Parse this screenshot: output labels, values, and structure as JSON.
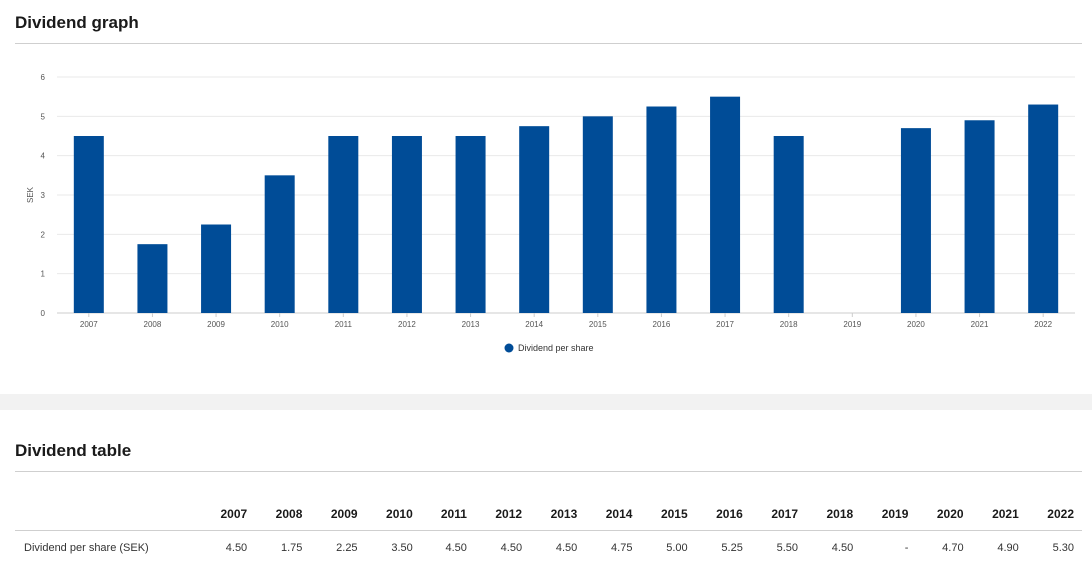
{
  "graph": {
    "title": "Dividend graph"
  },
  "table": {
    "title": "Dividend table",
    "row_label": "Dividend per share (SEK)",
    "years": [
      "2007",
      "2008",
      "2009",
      "2010",
      "2011",
      "2012",
      "2013",
      "2014",
      "2015",
      "2016",
      "2017",
      "2018",
      "2019",
      "2020",
      "2021",
      "2022"
    ],
    "values": [
      "4.50",
      "1.75",
      "2.25",
      "3.50",
      "4.50",
      "4.50",
      "4.50",
      "4.75",
      "5.00",
      "5.25",
      "5.50",
      "4.50",
      "-",
      "4.70",
      "4.90",
      "5.30"
    ]
  },
  "chart_data": {
    "type": "bar",
    "categories": [
      "2007",
      "2008",
      "2009",
      "2010",
      "2011",
      "2012",
      "2013",
      "2014",
      "2015",
      "2016",
      "2017",
      "2018",
      "2019",
      "2020",
      "2021",
      "2022"
    ],
    "series": [
      {
        "name": "Dividend per share",
        "values": [
          4.5,
          1.75,
          2.25,
          3.5,
          4.5,
          4.5,
          4.5,
          4.75,
          5.0,
          5.25,
          5.5,
          4.5,
          null,
          4.7,
          4.9,
          5.3
        ],
        "color": "#004c97"
      }
    ],
    "ylabel": "SEK",
    "ylim": [
      0,
      6
    ],
    "yticks": [
      0,
      1,
      2,
      3,
      4,
      5,
      6
    ],
    "grid": true,
    "legend_position": "bottom-center",
    "legend_label": "Dividend per share"
  }
}
